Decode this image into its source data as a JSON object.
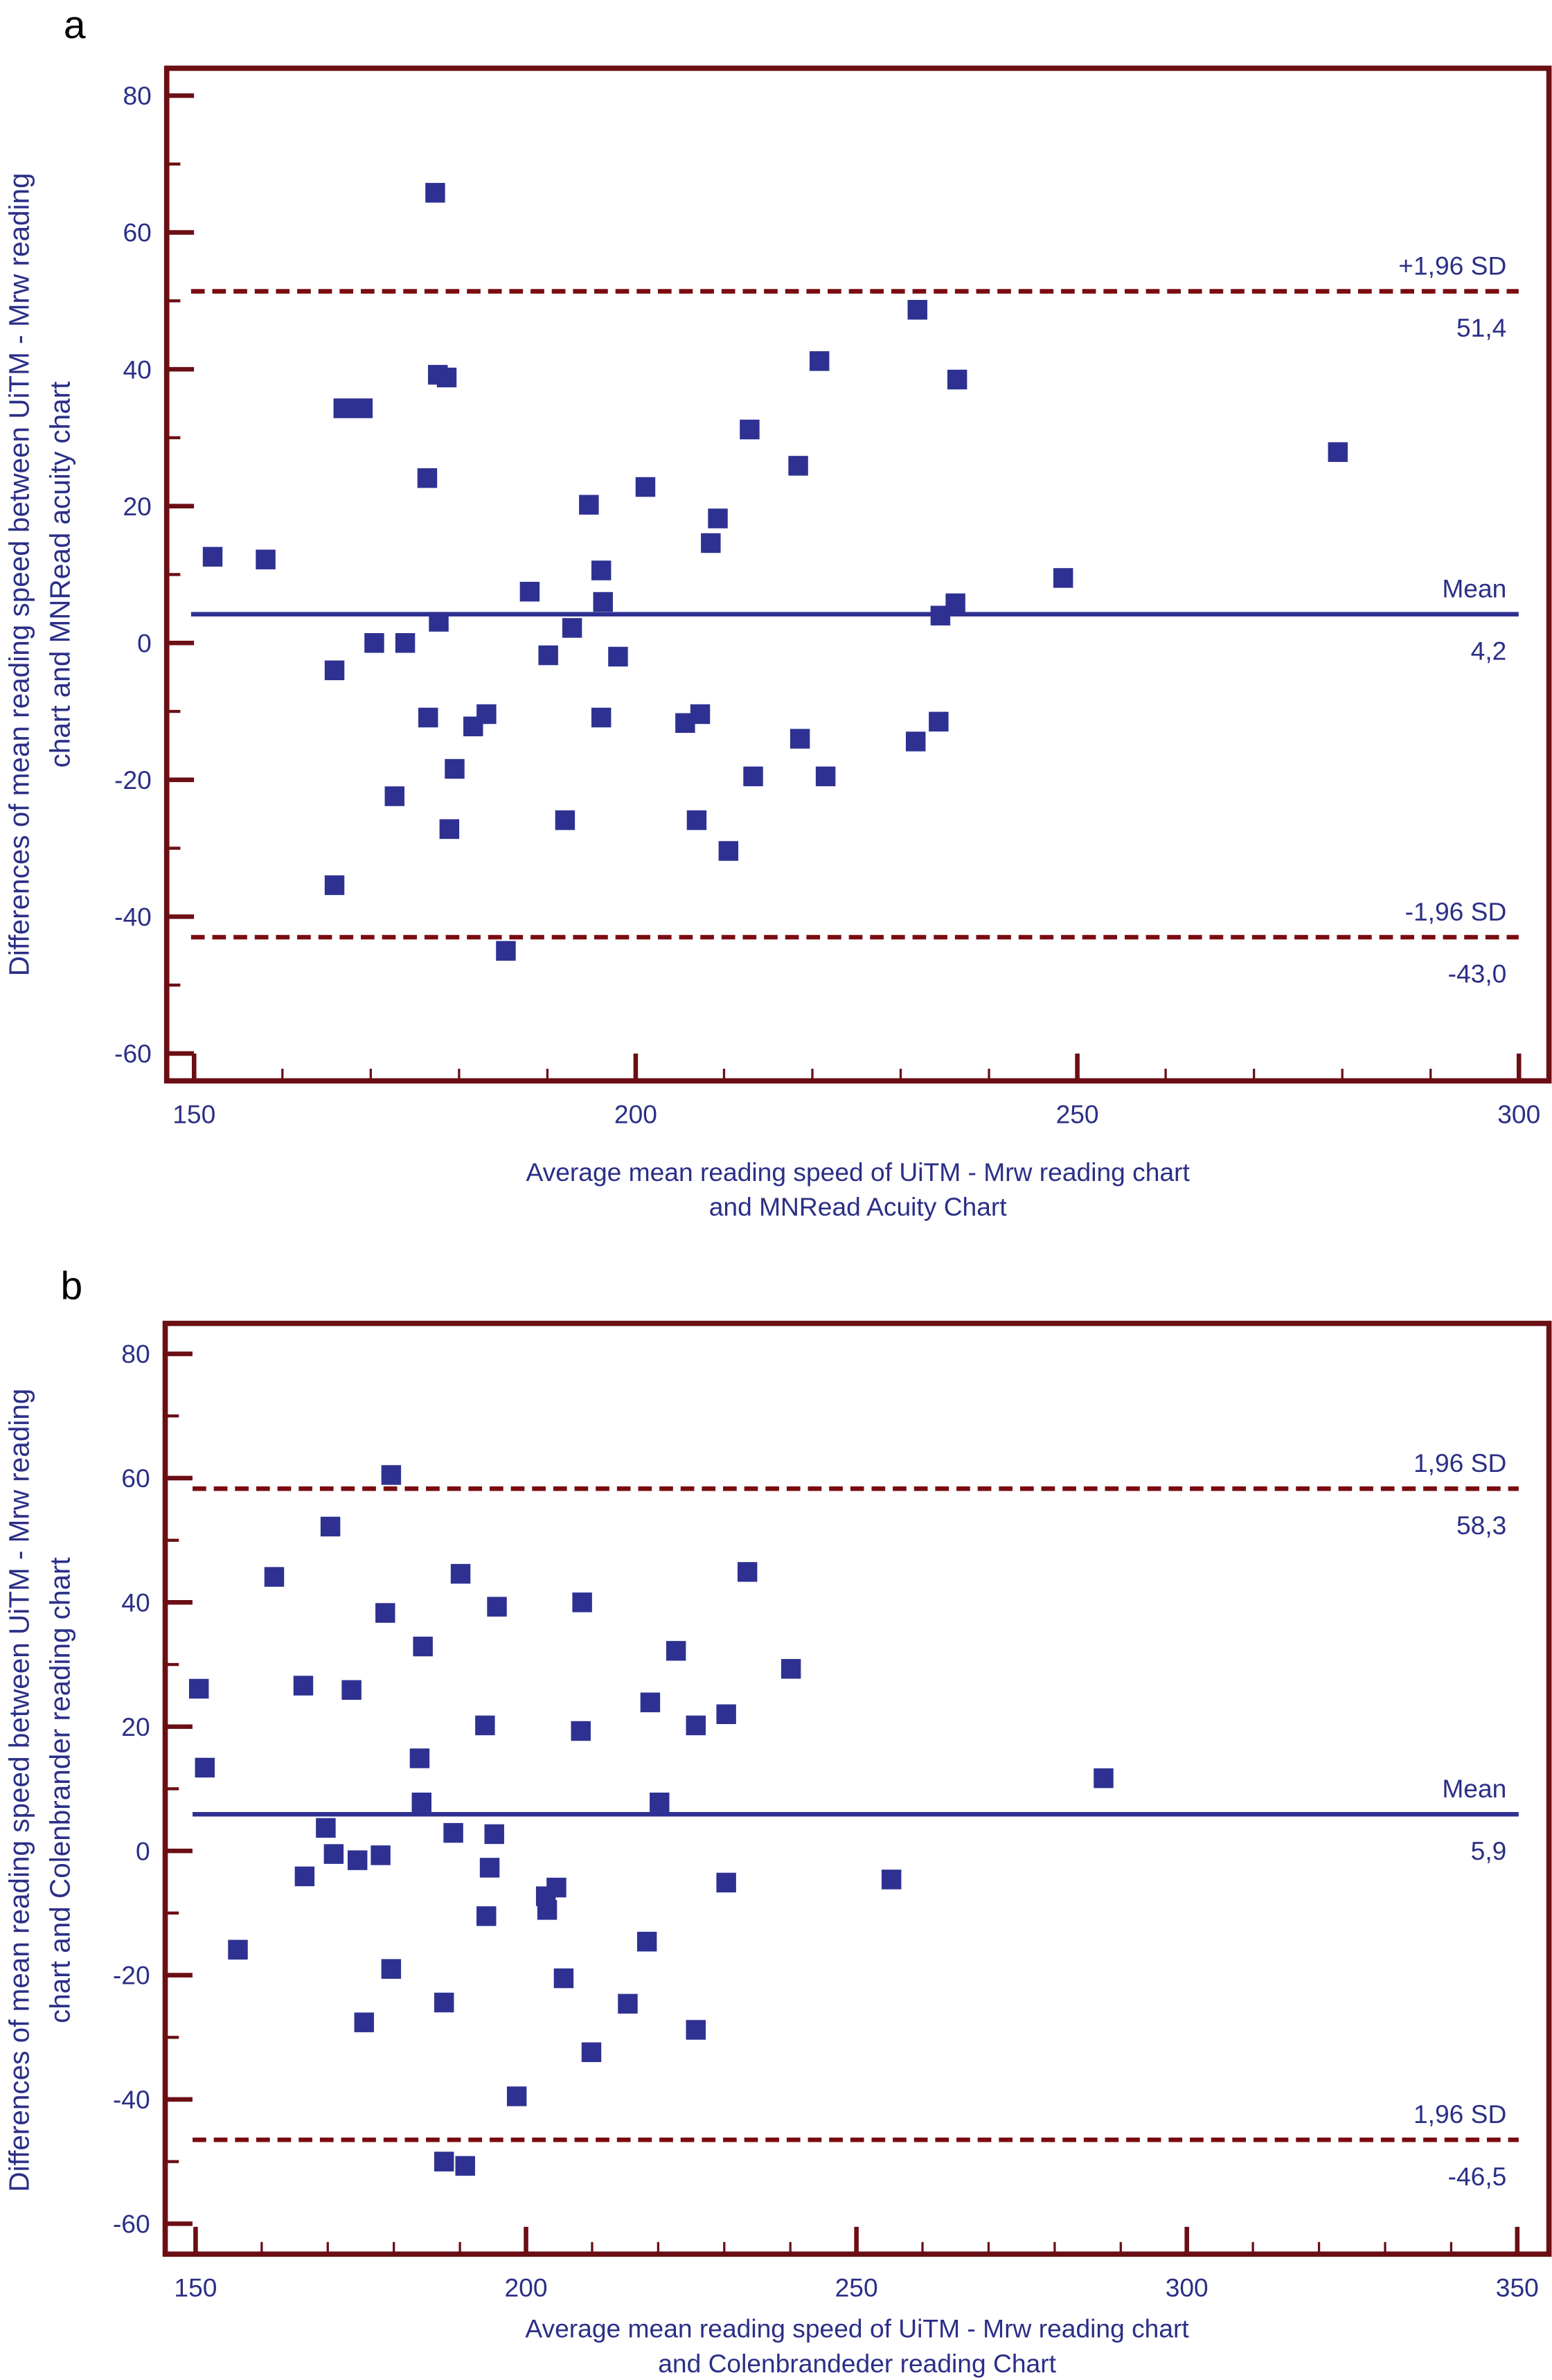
{
  "colors": {
    "frame": "#6b0f14",
    "points": "#2e3192",
    "mean_line": "#2e3192",
    "sd_line": "#7a0c10",
    "text": "#2b2f86"
  },
  "chart_data": [
    {
      "panel_label": "a",
      "type": "scatter",
      "xlabel": [
        "Average mean reading speed of UiTM - Mrw reading chart",
        "and MNRead Acuity Chart"
      ],
      "ylabel": [
        "Differences of mean reading speed between UiTM - Mrw reading",
        "chart and MNRead acuity chart"
      ],
      "xlim": [
        146.9,
        303.4
      ],
      "ylim": [
        -64,
        84
      ],
      "xticks": [
        150,
        200,
        250,
        300
      ],
      "yticks": [
        -60,
        -40,
        -20,
        0,
        20,
        40,
        60,
        80
      ],
      "grid": false,
      "reference_lines": [
        {
          "label": "+1,96 SD",
          "value_label": "51,4",
          "y": 51.4,
          "style": "dashed"
        },
        {
          "label": "Mean",
          "value_label": "4,2",
          "y": 4.2,
          "style": "solid"
        },
        {
          "label": "-1,96 SD",
          "value_label": "-43,0",
          "y": -43.0,
          "style": "dashed"
        }
      ],
      "points": [
        [
          152.1,
          12.6
        ],
        [
          158.1,
          12.2
        ],
        [
          177.3,
          65.8
        ],
        [
          166.9,
          34.3
        ],
        [
          169.1,
          34.3
        ],
        [
          177.6,
          39.2
        ],
        [
          178.6,
          38.8
        ],
        [
          176.4,
          24.1
        ],
        [
          165.9,
          -4.0
        ],
        [
          170.4,
          0
        ],
        [
          173.9,
          0
        ],
        [
          177.7,
          3.1
        ],
        [
          176.5,
          -10.9
        ],
        [
          172.7,
          -22.4
        ],
        [
          165.9,
          -35.4
        ],
        [
          179.5,
          -18.4
        ],
        [
          178.9,
          -27.2
        ],
        [
          181.6,
          -12.2
        ],
        [
          183.1,
          -10.4
        ],
        [
          185.3,
          -45.0
        ],
        [
          188.0,
          7.5
        ],
        [
          190.1,
          -1.8
        ],
        [
          192.8,
          2.2
        ],
        [
          192.0,
          -25.9
        ],
        [
          194.7,
          20.2
        ],
        [
          196.1,
          10.6
        ],
        [
          196.3,
          6.0
        ],
        [
          196.1,
          -10.9
        ],
        [
          198.0,
          -2.0
        ],
        [
          201.1,
          22.8
        ],
        [
          205.6,
          -11.7
        ],
        [
          207.3,
          -10.4
        ],
        [
          206.9,
          -25.9
        ],
        [
          208.5,
          14.6
        ],
        [
          209.3,
          18.2
        ],
        [
          210.5,
          -30.4
        ],
        [
          212.9,
          31.2
        ],
        [
          213.3,
          -19.5
        ],
        [
          218.4,
          25.9
        ],
        [
          218.6,
          -14.0
        ],
        [
          220.8,
          41.2
        ],
        [
          221.5,
          -19.5
        ],
        [
          231.9,
          48.7
        ],
        [
          231.7,
          -14.4
        ],
        [
          234.3,
          -11.5
        ],
        [
          234.5,
          4.0
        ],
        [
          236.2,
          5.8
        ],
        [
          236.4,
          38.5
        ],
        [
          248.4,
          9.5
        ],
        [
          279.5,
          27.9
        ]
      ]
    },
    {
      "panel_label": "b",
      "type": "scatter",
      "xlabel": [
        "Average mean reading speed of UiTM - Mrw reading chart",
        "and Colenbrandeder reading Chart"
      ],
      "ylabel": [
        "Differences of mean reading speed between UiTM - Mrw reading",
        "chart and Colenbrander reading chart"
      ],
      "xlim": [
        145.4,
        354.8
      ],
      "ylim": [
        -64.9,
        84.9
      ],
      "xticks": [
        150,
        200,
        250,
        300,
        350
      ],
      "yticks": [
        -60,
        -40,
        -20,
        0,
        20,
        40,
        60,
        80
      ],
      "grid": false,
      "reference_lines": [
        {
          "label": "1,96 SD",
          "value_label": "58,3",
          "y": 58.3,
          "style": "dashed"
        },
        {
          "label": "Mean",
          "value_label": "5,9",
          "y": 5.9,
          "style": "solid"
        },
        {
          "label": "1,96 SD",
          "value_label": "-46,5",
          "y": -46.5,
          "style": "dashed"
        }
      ],
      "points": [
        [
          150.5,
          26.1
        ],
        [
          151.4,
          13.4
        ],
        [
          156.4,
          -15.9
        ],
        [
          161.9,
          44.1
        ],
        [
          170.4,
          52.2
        ],
        [
          166.3,
          26.6
        ],
        [
          166.5,
          -4.1
        ],
        [
          169.7,
          3.7
        ],
        [
          170.9,
          -0.5
        ],
        [
          173.6,
          25.9
        ],
        [
          174.5,
          -1.5
        ],
        [
          175.5,
          -27.6
        ],
        [
          178.0,
          -0.7
        ],
        [
          178.7,
          38.3
        ],
        [
          179.6,
          -19.0
        ],
        [
          179.6,
          60.5
        ],
        [
          184.4,
          32.9
        ],
        [
          183.9,
          14.9
        ],
        [
          184.2,
          7.8
        ],
        [
          187.6,
          -24.4
        ],
        [
          187.6,
          -50.0
        ],
        [
          189.0,
          2.9
        ],
        [
          190.1,
          44.6
        ],
        [
          190.8,
          -50.7
        ],
        [
          193.8,
          20.2
        ],
        [
          194.0,
          -10.5
        ],
        [
          194.5,
          -2.7
        ],
        [
          195.2,
          2.7
        ],
        [
          195.6,
          39.3
        ],
        [
          198.6,
          -39.5
        ],
        [
          203.0,
          -7.3
        ],
        [
          203.2,
          -9.5
        ],
        [
          204.6,
          -5.9
        ],
        [
          205.7,
          -20.5
        ],
        [
          208.3,
          19.3
        ],
        [
          208.5,
          40.0
        ],
        [
          209.9,
          -32.4
        ],
        [
          215.4,
          -24.6
        ],
        [
          218.3,
          -14.6
        ],
        [
          218.8,
          23.9
        ],
        [
          220.2,
          7.8
        ],
        [
          222.7,
          32.2
        ],
        [
          225.7,
          20.2
        ],
        [
          225.7,
          -28.8
        ],
        [
          230.3,
          -5.1
        ],
        [
          230.3,
          22.0
        ],
        [
          233.5,
          44.9
        ],
        [
          240.1,
          29.3
        ],
        [
          255.3,
          -4.6
        ],
        [
          287.4,
          11.7
        ]
      ]
    }
  ]
}
